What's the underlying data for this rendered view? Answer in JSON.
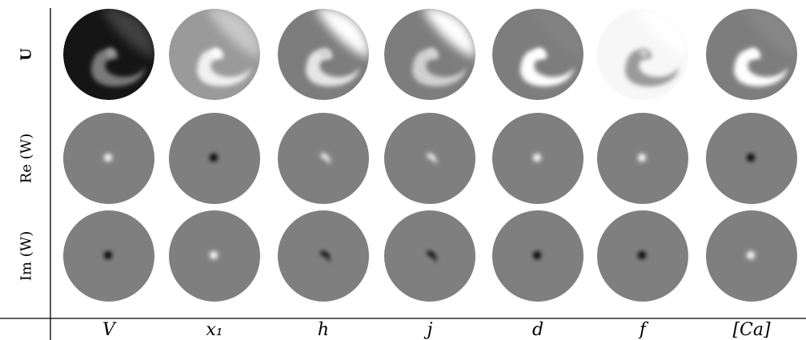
{
  "rows": [
    {
      "id": "u",
      "label": "U",
      "bold": true
    },
    {
      "id": "re",
      "label": "Re (W)",
      "bold": false
    },
    {
      "id": "im",
      "label": "Im (W)",
      "bold": false
    }
  ],
  "columns": [
    {
      "id": "v",
      "label": "V"
    },
    {
      "id": "x1",
      "label": "x₁"
    },
    {
      "id": "h",
      "label": "h"
    },
    {
      "id": "j",
      "label": "j"
    },
    {
      "id": "d",
      "label": "d"
    },
    {
      "id": "f",
      "label": "f"
    },
    {
      "id": "ca",
      "label": "[Ca]"
    }
  ],
  "panels_u": [
    {
      "name": "v",
      "bg": "#151515",
      "arm": "#7a7a7a",
      "tip": "#9a9a9a",
      "outer": "#404040"
    },
    {
      "name": "x1",
      "bg": "#9a9a9a",
      "arm": "#f0f0f0",
      "tip": "#ffffff",
      "outer": "#c8c8c8"
    },
    {
      "name": "h",
      "bg": "#7d7d7d",
      "arm": "#e5e5e5",
      "tip": "#d0d0d0",
      "outer": "#ffffff"
    },
    {
      "name": "j",
      "bg": "#7d7d7d",
      "arm": "#d0d0d0",
      "tip": "#d5d5d5",
      "outer": "#ffffff"
    },
    {
      "name": "d",
      "bg": "#7d7d7d",
      "arm": "#ffffff",
      "tip": "#ffffff",
      "outer": "#828282"
    },
    {
      "name": "f",
      "bg": "#f7f7f7",
      "arm": "#9a9a9a",
      "tip": "#cacaca",
      "outer": "#ffffff"
    },
    {
      "name": "ca",
      "bg": "#7d7d7d",
      "arm": "#ffffff",
      "tip": "#ffffff",
      "outer": "#878787"
    }
  ],
  "panels_re": [
    {
      "name": "v",
      "spot": "#ffffff",
      "shape": "dot"
    },
    {
      "name": "x1",
      "spot": "#000000",
      "shape": "dot"
    },
    {
      "name": "h",
      "spot": "#ffffff",
      "shape": "crescent"
    },
    {
      "name": "j",
      "spot": "#ffffff",
      "shape": "crescent"
    },
    {
      "name": "d",
      "spot": "#ffffff",
      "shape": "dot"
    },
    {
      "name": "f",
      "spot": "#ffffff",
      "shape": "dot"
    },
    {
      "name": "ca",
      "spot": "#000000",
      "shape": "dot"
    }
  ],
  "panels_im": [
    {
      "name": "v",
      "spot": "#000000",
      "shape": "dot"
    },
    {
      "name": "x1",
      "spot": "#ffffff",
      "shape": "dot"
    },
    {
      "name": "h",
      "spot": "#000000",
      "shape": "crescent"
    },
    {
      "name": "j",
      "spot": "#000000",
      "shape": "crescent"
    },
    {
      "name": "d",
      "spot": "#000000",
      "shape": "dot"
    },
    {
      "name": "f",
      "spot": "#000000",
      "shape": "dot"
    },
    {
      "name": "ca",
      "spot": "#ffffff",
      "shape": "dot"
    }
  ],
  "colors": {
    "panel_gray": "#7f7f7f",
    "axis": "#000000"
  }
}
